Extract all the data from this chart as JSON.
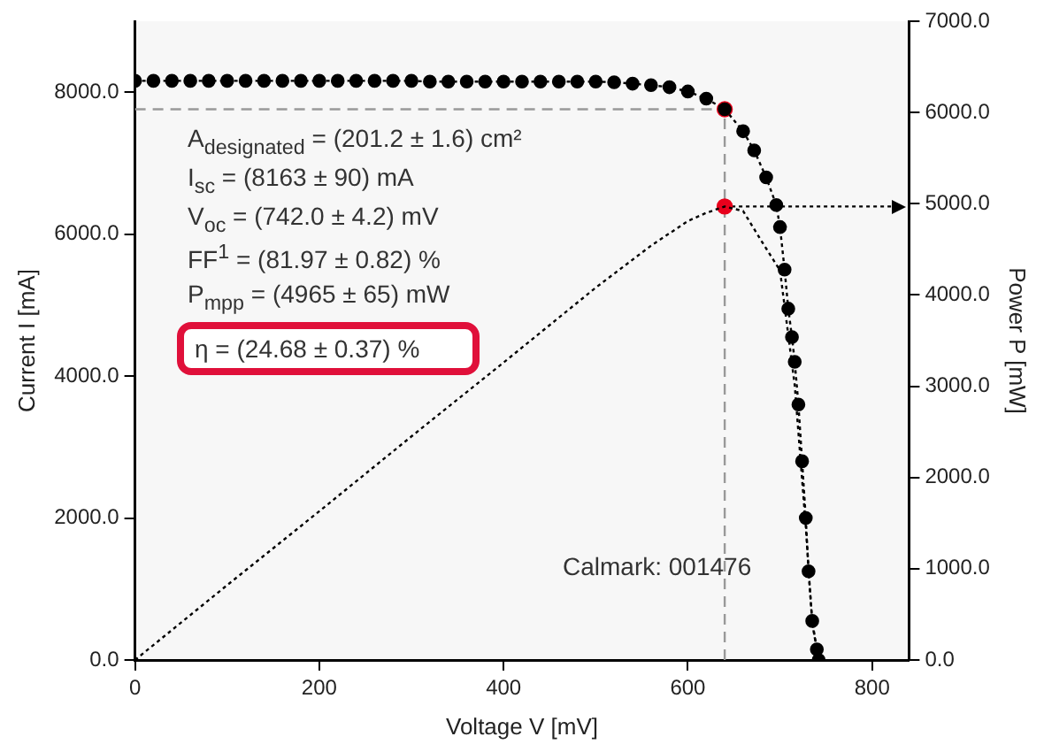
{
  "chart_data": {
    "type": "line",
    "xlabel": "Voltage V [mV]",
    "ylabel": "Current I [mA]",
    "y2label": "Power P [mW]",
    "xlim": [
      0,
      840
    ],
    "xticks": [
      0,
      200,
      400,
      600,
      800
    ],
    "ylim": [
      0,
      9000
    ],
    "yticks": [
      {
        "value": 0,
        "label": "0.0"
      },
      {
        "value": 2000,
        "label": "2000.0"
      },
      {
        "value": 4000,
        "label": "4000.0"
      },
      {
        "value": 6000,
        "label": "6000.0"
      },
      {
        "value": 8000,
        "label": "8000.0"
      }
    ],
    "y2lim": [
      0,
      7000
    ],
    "y2ticks": [
      {
        "value": 0,
        "label": "0.0"
      },
      {
        "value": 1000,
        "label": "1000.0"
      },
      {
        "value": 2000,
        "label": "2000.0"
      },
      {
        "value": 3000,
        "label": "3000.0"
      },
      {
        "value": 4000,
        "label": "4000.0"
      },
      {
        "value": 5000,
        "label": "5000.0"
      },
      {
        "value": 6000,
        "label": "6000.0"
      },
      {
        "value": 7000,
        "label": "7000.0"
      }
    ],
    "grid": false,
    "legend": false,
    "series": [
      {
        "color": "#000000",
        "marker": "circle",
        "line_style": "dotted",
        "x": [
          0,
          20,
          40,
          60,
          80,
          100,
          120,
          140,
          160,
          180,
          200,
          220,
          240,
          260,
          280,
          300,
          320,
          340,
          360,
          380,
          400,
          420,
          440,
          460,
          480,
          500,
          520,
          540,
          560,
          580,
          600,
          620,
          640,
          660,
          672,
          685,
          696,
          700,
          705,
          709,
          713,
          716,
          720,
          724,
          728,
          731,
          735,
          740,
          742
        ],
        "values": [
          8160,
          8160,
          8160,
          8160,
          8160,
          8160,
          8160,
          8160,
          8160,
          8160,
          8160,
          8160,
          8160,
          8160,
          8160,
          8160,
          8150,
          8150,
          8150,
          8150,
          8150,
          8150,
          8150,
          8150,
          8150,
          8150,
          8140,
          8120,
          8100,
          8070,
          8010,
          7910,
          7760,
          7450,
          7180,
          6800,
          6410,
          6100,
          5500,
          4950,
          4550,
          4200,
          3600,
          2800,
          2000,
          1250,
          550,
          150,
          0
        ]
      },
      {
        "axis": "y2",
        "color": "#000000",
        "marker": "none",
        "line_style": "dotted",
        "x": [
          0,
          100,
          200,
          300,
          400,
          500,
          560,
          600,
          620,
          640,
          660,
          680,
          700,
          716,
          728,
          735,
          742
        ],
        "values": [
          0,
          820,
          1630,
          2450,
          3260,
          4080,
          4540,
          4810,
          4900,
          4970,
          4920,
          4590,
          4270,
          3010,
          1460,
          400,
          0
        ]
      },
      {
        "type": "scatter",
        "color": "#e8001c",
        "x": [
          640
        ],
        "values": [
          7760
        ]
      },
      {
        "type": "scatter",
        "axis": "y2",
        "color": "#e8001c",
        "x": [
          640
        ],
        "values": [
          4970
        ]
      }
    ],
    "ref_lines": [
      {
        "axis": "x",
        "value": 640,
        "color": "#999999",
        "line_style": "dashed"
      },
      {
        "axis": "y",
        "value": 7760,
        "color": "#999999",
        "line_style": "dashed"
      },
      {
        "axis": "y2",
        "value": 4970,
        "color": "#000000",
        "line_style": "dotted"
      }
    ],
    "annotations": [
      "A$_{designated}$ = (201.2 ± 1.6) cm²",
      "I$_{sc}$ = (8163 ± 90) mA",
      "V$_{oc}$ = (742.0 ± 4.2) mV",
      "FF$^{1}$ = (81.97 ± 0.82) %",
      "P$_{mpp}$ = (4965 ± 65) mW",
      "η = (24.68 ± 0.37) %",
      "Calmark: 001476"
    ]
  }
}
